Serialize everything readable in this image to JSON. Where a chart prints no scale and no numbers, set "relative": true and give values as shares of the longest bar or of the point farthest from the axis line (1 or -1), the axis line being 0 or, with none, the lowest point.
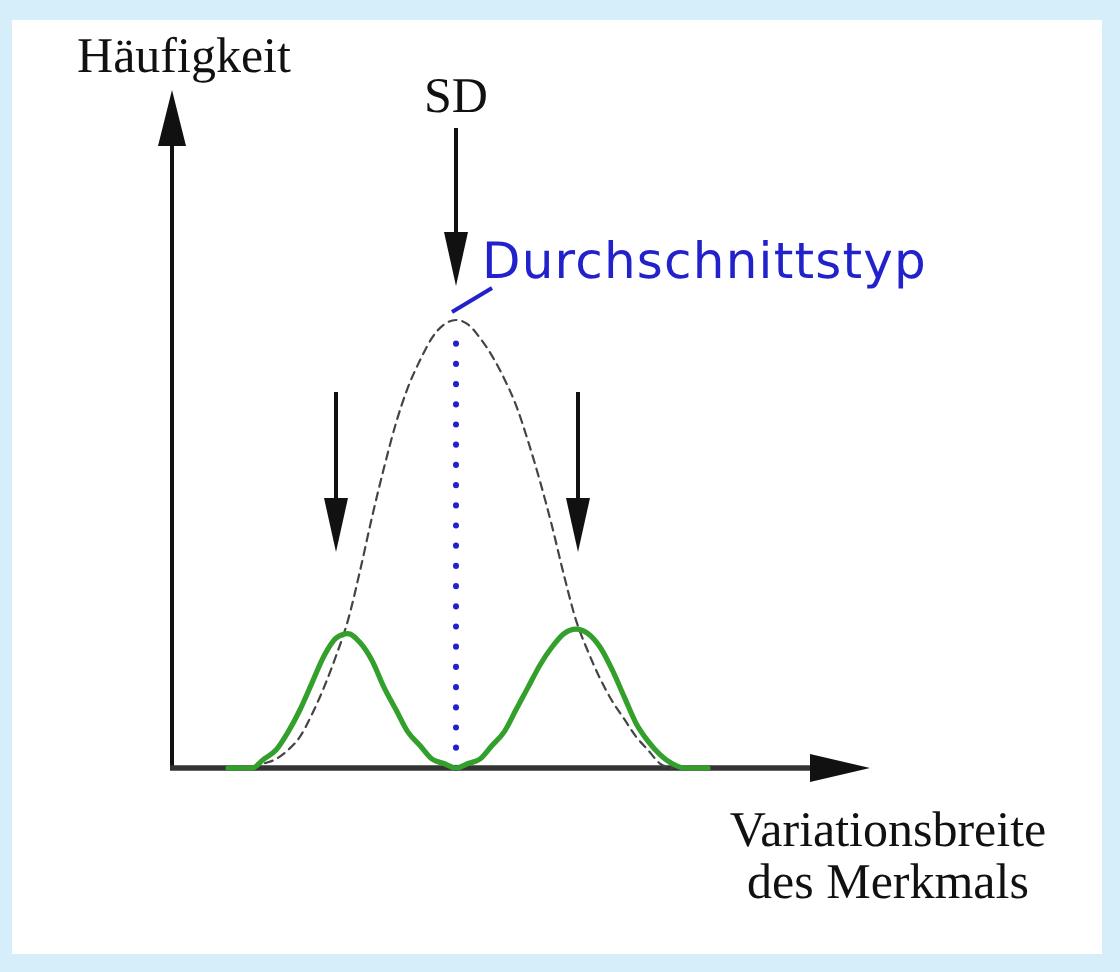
{
  "chart_data": {
    "type": "line",
    "relative": true,
    "xlabel": "Variationsbreite\ndes Merkmals",
    "annotations": [
      "Häufigkeit",
      "SD",
      "Durchschnittstyp"
    ],
    "categories": [
      null,
      null,
      null,
      null,
      null,
      null,
      null,
      null,
      null,
      null,
      null,
      null,
      null,
      null,
      null,
      null,
      null,
      null,
      null,
      null,
      null,
      null,
      null,
      null,
      null,
      null,
      null,
      null,
      null,
      null,
      null,
      null,
      null,
      null,
      null,
      null,
      null,
      null,
      null,
      null,
      null
    ],
    "series": [
      {
        "color": "#444444",
        "line_style": "dashed",
        "values": [
          null,
          null,
          0.0,
          0.01,
          0.02,
          0.04,
          0.07,
          0.12,
          0.18,
          0.25,
          0.33,
          0.44,
          0.56,
          0.67,
          0.77,
          0.85,
          0.91,
          0.96,
          0.99,
          1.0,
          0.99,
          0.96,
          0.92,
          0.87,
          0.81,
          0.73,
          0.64,
          0.54,
          0.43,
          0.33,
          0.26,
          0.2,
          0.15,
          0.11,
          0.07,
          0.04,
          0.01,
          0.0,
          null,
          null,
          null
        ]
      },
      {
        "color": "#33a02c",
        "line_style": "solid",
        "values": [
          0.0,
          0.0,
          0.0,
          0.02,
          0.04,
          0.08,
          0.13,
          0.19,
          0.25,
          0.29,
          0.3,
          0.28,
          0.24,
          0.18,
          0.13,
          0.08,
          0.05,
          0.02,
          0.01,
          0.0,
          0.01,
          0.02,
          0.05,
          0.08,
          0.13,
          0.18,
          0.23,
          0.27,
          0.3,
          0.31,
          0.3,
          0.27,
          0.22,
          0.16,
          0.1,
          0.06,
          0.03,
          0.01,
          0.0,
          0.0,
          0.0
        ]
      }
    ]
  }
}
